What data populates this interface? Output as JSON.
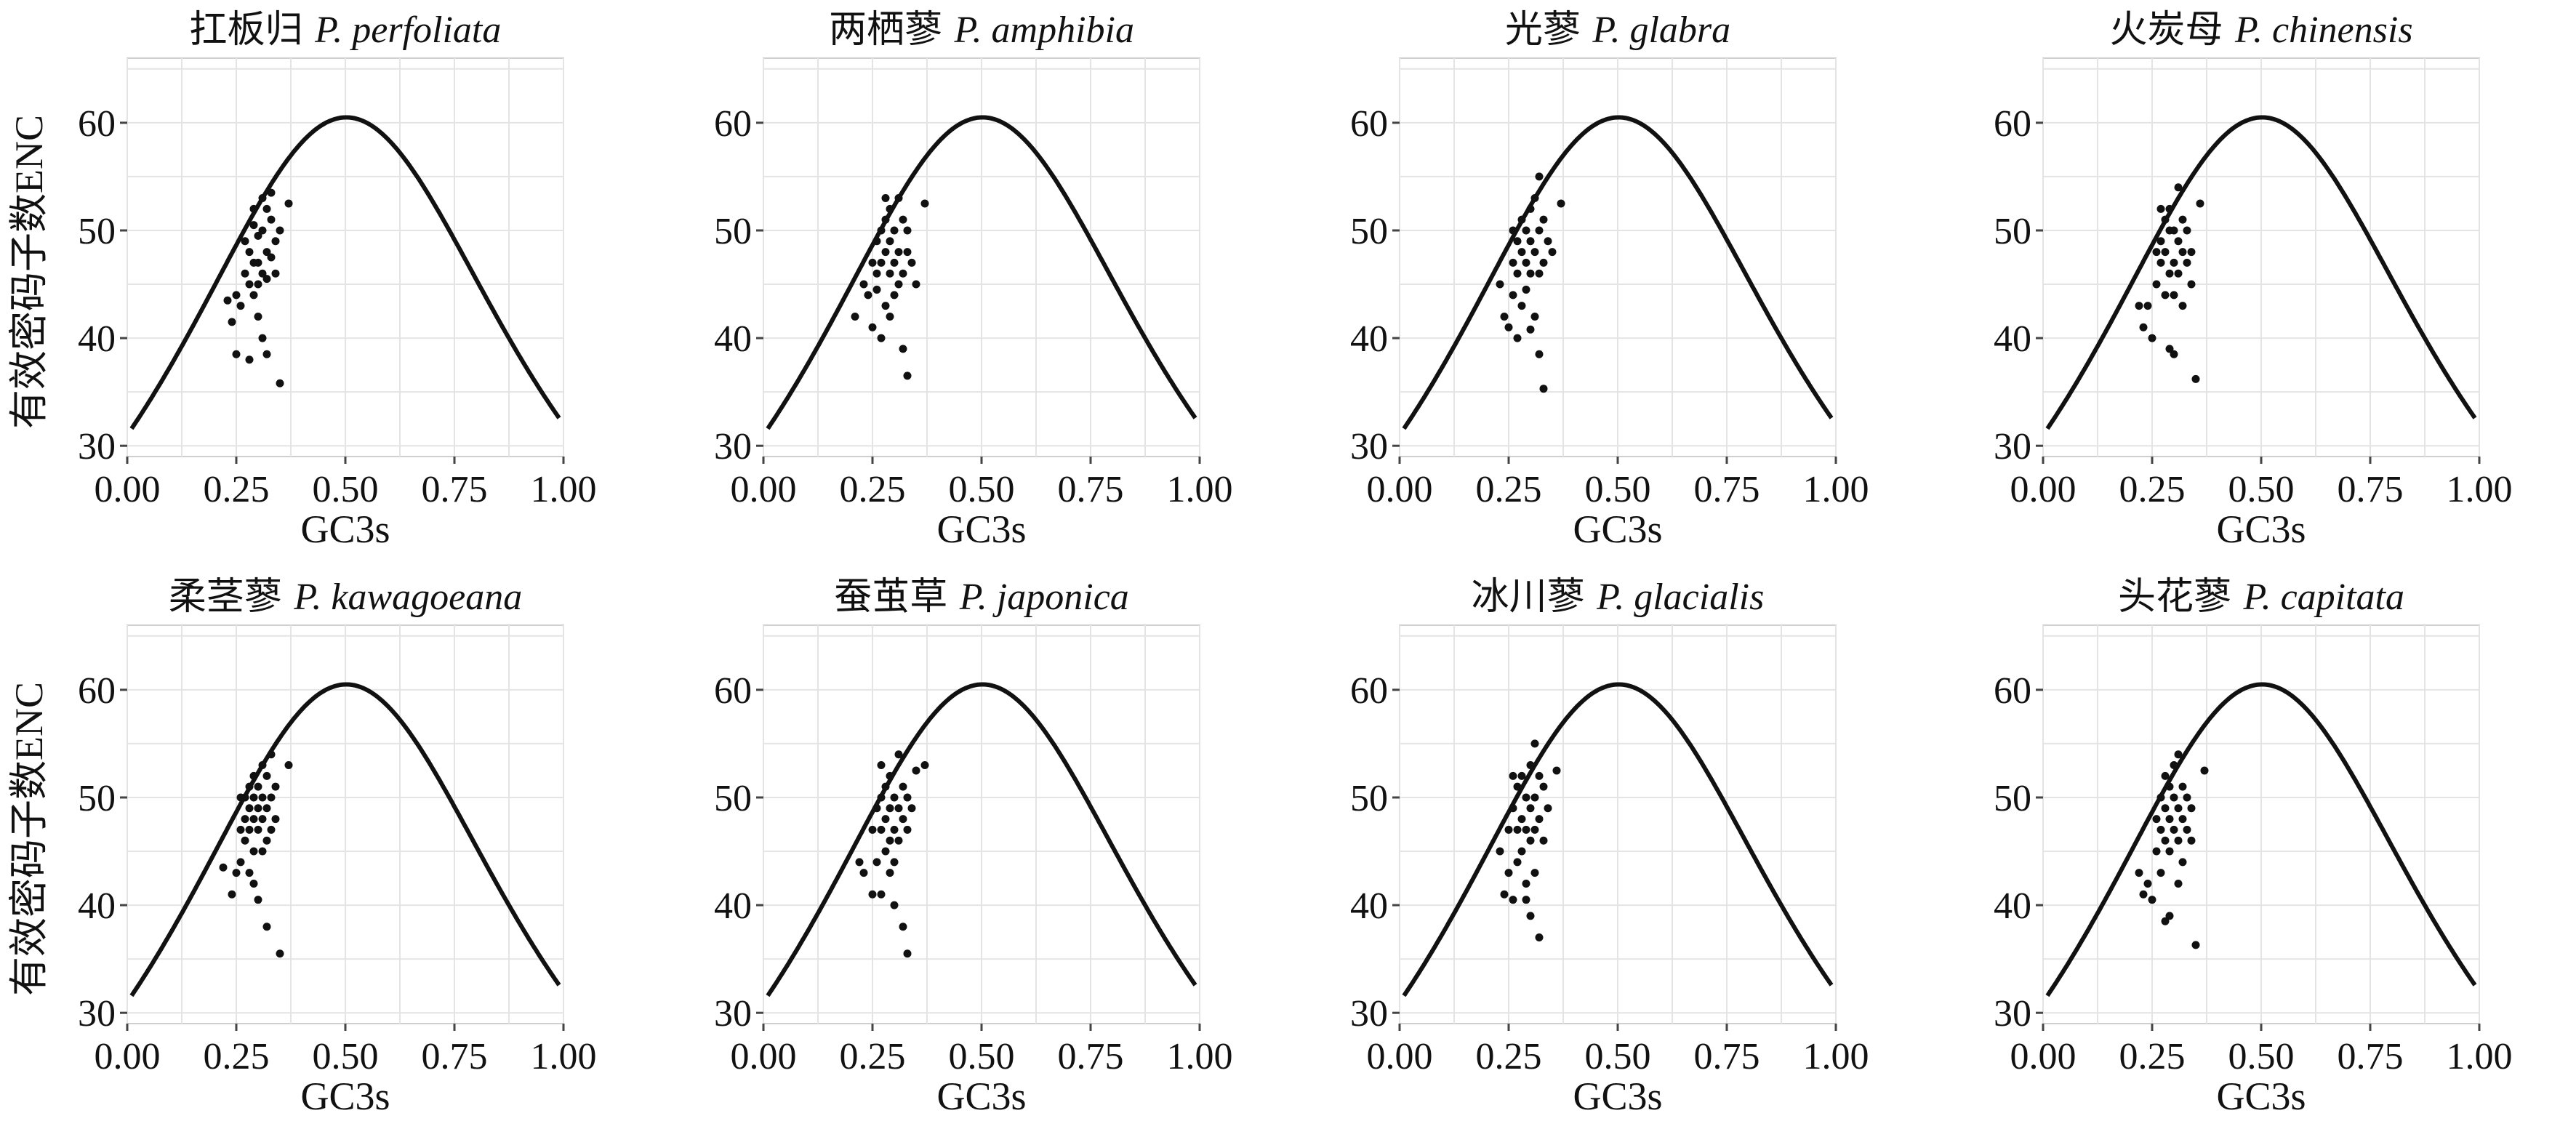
{
  "figure": {
    "panels_per_row": 4,
    "colors": {
      "curve": "#111111",
      "points": "#111111",
      "grid": "#e4e4e4"
    }
  },
  "chart_data": [
    {
      "type": "scatter",
      "title_cn": "扛板归",
      "title_latin": "P. perfoliata",
      "xlabel": "GC3s",
      "ylabel": "有效密码子数ENC",
      "xlim": [
        0,
        1
      ],
      "ylim": [
        29,
        66
      ],
      "xticks": [
        "0.00",
        "0.25",
        "0.50",
        "0.75",
        "1.00"
      ],
      "yticks": [
        "30",
        "40",
        "50",
        "60"
      ],
      "expected_curve": "ENC = 2 + GC3s + 29/(GC3s^2 + (1-GC3s)^2)",
      "points": [
        [
          0.23,
          43.5
        ],
        [
          0.24,
          41.5
        ],
        [
          0.25,
          44
        ],
        [
          0.26,
          43
        ],
        [
          0.25,
          38.5
        ],
        [
          0.27,
          46
        ],
        [
          0.28,
          48
        ],
        [
          0.28,
          45
        ],
        [
          0.28,
          38
        ],
        [
          0.29,
          50.5
        ],
        [
          0.29,
          47
        ],
        [
          0.29,
          44
        ],
        [
          0.3,
          49.5
        ],
        [
          0.3,
          47
        ],
        [
          0.3,
          42
        ],
        [
          0.31,
          53
        ],
        [
          0.31,
          50
        ],
        [
          0.31,
          46
        ],
        [
          0.31,
          40
        ],
        [
          0.32,
          52
        ],
        [
          0.32,
          48
        ],
        [
          0.32,
          45.5
        ],
        [
          0.32,
          38.5
        ],
        [
          0.33,
          53.5
        ],
        [
          0.33,
          51
        ],
        [
          0.33,
          47.5
        ],
        [
          0.34,
          49
        ],
        [
          0.34,
          46
        ],
        [
          0.35,
          50
        ],
        [
          0.35,
          35.8
        ],
        [
          0.37,
          52.5
        ],
        [
          0.27,
          49
        ],
        [
          0.3,
          45
        ],
        [
          0.29,
          52
        ]
      ]
    },
    {
      "type": "scatter",
      "title_cn": "两栖蓼",
      "title_latin": "P. amphibia",
      "xlabel": "GC3s",
      "ylabel": "",
      "xlim": [
        0,
        1
      ],
      "ylim": [
        29,
        66
      ],
      "xticks": [
        "0.00",
        "0.25",
        "0.50",
        "0.75",
        "1.00"
      ],
      "yticks": [
        "30",
        "40",
        "50",
        "60"
      ],
      "expected_curve": "ENC = 2 + GC3s + 29/(GC3s^2 + (1-GC3s)^2)",
      "points": [
        [
          0.21,
          42
        ],
        [
          0.23,
          45
        ],
        [
          0.24,
          44
        ],
        [
          0.25,
          47
        ],
        [
          0.25,
          41
        ],
        [
          0.26,
          49
        ],
        [
          0.26,
          46
        ],
        [
          0.27,
          50
        ],
        [
          0.27,
          47
        ],
        [
          0.27,
          40
        ],
        [
          0.28,
          51
        ],
        [
          0.28,
          48
        ],
        [
          0.28,
          43
        ],
        [
          0.29,
          52
        ],
        [
          0.29,
          49
        ],
        [
          0.29,
          46
        ],
        [
          0.29,
          42
        ],
        [
          0.3,
          50
        ],
        [
          0.3,
          47
        ],
        [
          0.3,
          44
        ],
        [
          0.31,
          53
        ],
        [
          0.31,
          48
        ],
        [
          0.31,
          45
        ],
        [
          0.32,
          51
        ],
        [
          0.32,
          46
        ],
        [
          0.32,
          39
        ],
        [
          0.33,
          50
        ],
        [
          0.33,
          48
        ],
        [
          0.33,
          36.5
        ],
        [
          0.34,
          47
        ],
        [
          0.35,
          45
        ],
        [
          0.37,
          52.5
        ],
        [
          0.28,
          53
        ],
        [
          0.26,
          44.5
        ]
      ]
    },
    {
      "type": "scatter",
      "title_cn": "光蓼",
      "title_latin": "P. glabra",
      "xlabel": "GC3s",
      "ylabel": "",
      "xlim": [
        0,
        1
      ],
      "ylim": [
        29,
        66
      ],
      "xticks": [
        "0.00",
        "0.25",
        "0.50",
        "0.75",
        "1.00"
      ],
      "yticks": [
        "30",
        "40",
        "50",
        "60"
      ],
      "expected_curve": "ENC = 2 + GC3s + 29/(GC3s^2 + (1-GC3s)^2)",
      "points": [
        [
          0.23,
          45
        ],
        [
          0.24,
          42
        ],
        [
          0.25,
          41
        ],
        [
          0.26,
          47
        ],
        [
          0.26,
          44
        ],
        [
          0.27,
          49
        ],
        [
          0.27,
          46
        ],
        [
          0.27,
          40
        ],
        [
          0.28,
          51
        ],
        [
          0.28,
          48
        ],
        [
          0.28,
          43
        ],
        [
          0.29,
          50
        ],
        [
          0.29,
          47
        ],
        [
          0.29,
          44.5
        ],
        [
          0.3,
          52
        ],
        [
          0.3,
          49
        ],
        [
          0.3,
          46
        ],
        [
          0.31,
          53
        ],
        [
          0.31,
          48
        ],
        [
          0.31,
          42
        ],
        [
          0.32,
          55
        ],
        [
          0.32,
          50
        ],
        [
          0.32,
          46
        ],
        [
          0.32,
          38.5
        ],
        [
          0.33,
          51
        ],
        [
          0.33,
          47
        ],
        [
          0.33,
          35.3
        ],
        [
          0.34,
          49
        ],
        [
          0.35,
          48
        ],
        [
          0.37,
          52.5
        ],
        [
          0.26,
          50
        ],
        [
          0.3,
          40.8
        ]
      ]
    },
    {
      "type": "scatter",
      "title_cn": "火炭母",
      "title_latin": "P. chinensis",
      "xlabel": "GC3s",
      "ylabel": "",
      "xlim": [
        0,
        1
      ],
      "ylim": [
        29,
        66
      ],
      "xticks": [
        "0.00",
        "0.25",
        "0.50",
        "0.75",
        "1.00"
      ],
      "yticks": [
        "30",
        "40",
        "50",
        "60"
      ],
      "expected_curve": "ENC = 2 + GC3s + 29/(GC3s^2 + (1-GC3s)^2)",
      "points": [
        [
          0.22,
          43
        ],
        [
          0.23,
          41
        ],
        [
          0.24,
          43
        ],
        [
          0.25,
          40
        ],
        [
          0.26,
          48
        ],
        [
          0.26,
          45
        ],
        [
          0.27,
          49
        ],
        [
          0.27,
          47
        ],
        [
          0.28,
          51
        ],
        [
          0.28,
          48
        ],
        [
          0.28,
          44
        ],
        [
          0.29,
          52
        ],
        [
          0.29,
          50
        ],
        [
          0.29,
          46
        ],
        [
          0.29,
          39
        ],
        [
          0.3,
          50
        ],
        [
          0.3,
          47
        ],
        [
          0.3,
          44
        ],
        [
          0.31,
          54
        ],
        [
          0.31,
          49
        ],
        [
          0.31,
          46
        ],
        [
          0.32,
          51
        ],
        [
          0.32,
          48
        ],
        [
          0.32,
          43
        ],
        [
          0.33,
          50
        ],
        [
          0.33,
          47
        ],
        [
          0.34,
          48
        ],
        [
          0.34,
          45
        ],
        [
          0.35,
          36.2
        ],
        [
          0.36,
          52.5
        ],
        [
          0.27,
          52
        ],
        [
          0.3,
          38.5
        ]
      ]
    },
    {
      "type": "scatter",
      "title_cn": "柔茎蓼",
      "title_latin": "P. kawagoeana",
      "xlabel": "GC3s",
      "ylabel": "有效密码子数ENC",
      "xlim": [
        0,
        1
      ],
      "ylim": [
        29,
        66
      ],
      "xticks": [
        "0.00",
        "0.25",
        "0.50",
        "0.75",
        "1.00"
      ],
      "yticks": [
        "30",
        "40",
        "50",
        "60"
      ],
      "expected_curve": "ENC = 2 + GC3s + 29/(GC3s^2 + (1-GC3s)^2)",
      "points": [
        [
          0.22,
          43.5
        ],
        [
          0.24,
          41
        ],
        [
          0.25,
          43
        ],
        [
          0.26,
          47
        ],
        [
          0.26,
          44
        ],
        [
          0.27,
          50
        ],
        [
          0.27,
          48
        ],
        [
          0.27,
          46
        ],
        [
          0.28,
          51
        ],
        [
          0.28,
          49
        ],
        [
          0.28,
          47
        ],
        [
          0.28,
          43
        ],
        [
          0.29,
          52
        ],
        [
          0.29,
          50
        ],
        [
          0.29,
          48
        ],
        [
          0.29,
          45
        ],
        [
          0.3,
          51
        ],
        [
          0.3,
          49
        ],
        [
          0.3,
          47
        ],
        [
          0.3,
          40.5
        ],
        [
          0.31,
          53
        ],
        [
          0.31,
          50
        ],
        [
          0.31,
          48
        ],
        [
          0.31,
          45
        ],
        [
          0.32,
          52
        ],
        [
          0.32,
          49
        ],
        [
          0.32,
          46
        ],
        [
          0.32,
          38
        ],
        [
          0.33,
          54
        ],
        [
          0.33,
          50
        ],
        [
          0.33,
          47
        ],
        [
          0.34,
          51
        ],
        [
          0.34,
          48
        ],
        [
          0.35,
          35.5
        ],
        [
          0.37,
          53
        ],
        [
          0.26,
          50
        ],
        [
          0.29,
          42
        ]
      ]
    },
    {
      "type": "scatter",
      "title_cn": "蚕茧草",
      "title_latin": "P. japonica",
      "xlabel": "GC3s",
      "ylabel": "",
      "xlim": [
        0,
        1
      ],
      "ylim": [
        29,
        66
      ],
      "xticks": [
        "0.00",
        "0.25",
        "0.50",
        "0.75",
        "1.00"
      ],
      "yticks": [
        "30",
        "40",
        "50",
        "60"
      ],
      "expected_curve": "ENC = 2 + GC3s + 29/(GC3s^2 + (1-GC3s)^2)",
      "points": [
        [
          0.22,
          44
        ],
        [
          0.23,
          43
        ],
        [
          0.25,
          41
        ],
        [
          0.25,
          47
        ],
        [
          0.26,
          49
        ],
        [
          0.26,
          44
        ],
        [
          0.27,
          50
        ],
        [
          0.27,
          47
        ],
        [
          0.27,
          41
        ],
        [
          0.28,
          51
        ],
        [
          0.28,
          48
        ],
        [
          0.28,
          45
        ],
        [
          0.29,
          52
        ],
        [
          0.29,
          49
        ],
        [
          0.29,
          46
        ],
        [
          0.29,
          43
        ],
        [
          0.3,
          50
        ],
        [
          0.3,
          47
        ],
        [
          0.3,
          44
        ],
        [
          0.3,
          40
        ],
        [
          0.31,
          54
        ],
        [
          0.31,
          49
        ],
        [
          0.31,
          46
        ],
        [
          0.32,
          51
        ],
        [
          0.32,
          48
        ],
        [
          0.32,
          38
        ],
        [
          0.33,
          50
        ],
        [
          0.33,
          47
        ],
        [
          0.33,
          35.5
        ],
        [
          0.34,
          49
        ],
        [
          0.35,
          52.5
        ],
        [
          0.37,
          53
        ],
        [
          0.27,
          53
        ]
      ]
    },
    {
      "type": "scatter",
      "title_cn": "冰川蓼",
      "title_latin": "P. glacialis",
      "xlabel": "GC3s",
      "ylabel": "",
      "xlim": [
        0,
        1
      ],
      "ylim": [
        29,
        66
      ],
      "xticks": [
        "0.00",
        "0.25",
        "0.50",
        "0.75",
        "1.00"
      ],
      "yticks": [
        "30",
        "40",
        "50",
        "60"
      ],
      "expected_curve": "ENC = 2 + GC3s + 29/(GC3s^2 + (1-GC3s)^2)",
      "points": [
        [
          0.23,
          45
        ],
        [
          0.24,
          41
        ],
        [
          0.25,
          43
        ],
        [
          0.25,
          47
        ],
        [
          0.26,
          49
        ],
        [
          0.26,
          40.5
        ],
        [
          0.27,
          51
        ],
        [
          0.27,
          47
        ],
        [
          0.27,
          44
        ],
        [
          0.28,
          52
        ],
        [
          0.28,
          48
        ],
        [
          0.28,
          45
        ],
        [
          0.29,
          50
        ],
        [
          0.29,
          47
        ],
        [
          0.29,
          42
        ],
        [
          0.3,
          53
        ],
        [
          0.3,
          49
        ],
        [
          0.3,
          46
        ],
        [
          0.3,
          39
        ],
        [
          0.31,
          55
        ],
        [
          0.31,
          50
        ],
        [
          0.31,
          47
        ],
        [
          0.31,
          43
        ],
        [
          0.32,
          52
        ],
        [
          0.32,
          48
        ],
        [
          0.32,
          37
        ],
        [
          0.33,
          51
        ],
        [
          0.33,
          46
        ],
        [
          0.34,
          49
        ],
        [
          0.36,
          52.5
        ],
        [
          0.26,
          52
        ],
        [
          0.29,
          40.5
        ]
      ]
    },
    {
      "type": "scatter",
      "title_cn": "头花蓼",
      "title_latin": "P. capitata",
      "xlabel": "GC3s",
      "ylabel": "",
      "xlim": [
        0,
        1
      ],
      "ylim": [
        29,
        66
      ],
      "xticks": [
        "0.00",
        "0.25",
        "0.50",
        "0.75",
        "1.00"
      ],
      "yticks": [
        "30",
        "40",
        "50",
        "60"
      ],
      "expected_curve": "ENC = 2 + GC3s + 29/(GC3s^2 + (1-GC3s)^2)",
      "points": [
        [
          0.22,
          43
        ],
        [
          0.23,
          41
        ],
        [
          0.24,
          42
        ],
        [
          0.25,
          40.5
        ],
        [
          0.26,
          48
        ],
        [
          0.26,
          45
        ],
        [
          0.27,
          50
        ],
        [
          0.27,
          47
        ],
        [
          0.27,
          43
        ],
        [
          0.28,
          52
        ],
        [
          0.28,
          49
        ],
        [
          0.28,
          46
        ],
        [
          0.29,
          51
        ],
        [
          0.29,
          48
        ],
        [
          0.29,
          45
        ],
        [
          0.29,
          39
        ],
        [
          0.3,
          53
        ],
        [
          0.3,
          50
        ],
        [
          0.3,
          47
        ],
        [
          0.31,
          54
        ],
        [
          0.31,
          49
        ],
        [
          0.31,
          46
        ],
        [
          0.31,
          42
        ],
        [
          0.32,
          51
        ],
        [
          0.32,
          48
        ],
        [
          0.32,
          44
        ],
        [
          0.33,
          50
        ],
        [
          0.33,
          47
        ],
        [
          0.34,
          49
        ],
        [
          0.34,
          46
        ],
        [
          0.35,
          36.3
        ],
        [
          0.37,
          52.5
        ],
        [
          0.28,
          38.5
        ]
      ]
    }
  ]
}
